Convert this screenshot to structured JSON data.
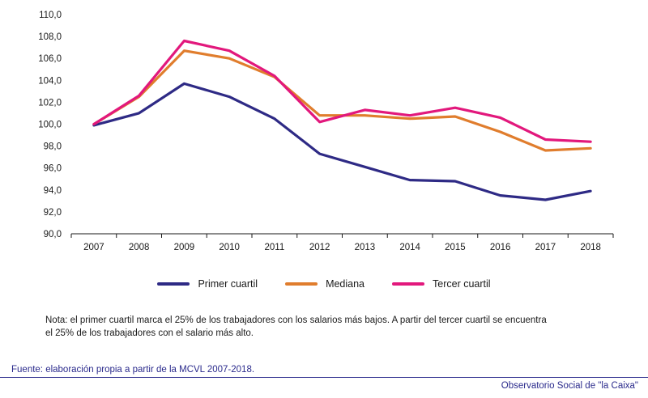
{
  "chart_data": {
    "type": "line",
    "title": "",
    "xlabel": "",
    "ylabel": "",
    "categories": [
      "2007",
      "2008",
      "2009",
      "2010",
      "2011",
      "2012",
      "2013",
      "2014",
      "2015",
      "2016",
      "2017",
      "2018"
    ],
    "ylim": [
      90,
      110
    ],
    "yticks": [
      "90,0",
      "92,0",
      "94,0",
      "96,0",
      "98,0",
      "100,0",
      "102,0",
      "104,0",
      "106,0",
      "108,0",
      "110,0"
    ],
    "grid": false,
    "legend_position": "bottom",
    "series": [
      {
        "name": "Primer cuartil",
        "color": "#2e2a85",
        "values": [
          99.9,
          101.0,
          103.7,
          102.5,
          100.5,
          97.3,
          96.1,
          94.9,
          94.8,
          93.5,
          93.1,
          93.9
        ]
      },
      {
        "name": "Mediana",
        "color": "#e07d2d",
        "values": [
          100.0,
          102.5,
          106.7,
          106.0,
          104.3,
          100.8,
          100.8,
          100.5,
          100.7,
          99.3,
          97.6,
          97.8
        ]
      },
      {
        "name": "Tercer cuartil",
        "color": "#e2187c",
        "values": [
          100.0,
          102.6,
          107.6,
          106.7,
          104.4,
          100.2,
          101.3,
          100.8,
          101.5,
          100.6,
          98.6,
          98.4
        ]
      }
    ]
  },
  "note": {
    "line1": "Nota: el primer cuartil marca el 25% de los trabajadores con los salarios más bajos. A partir del tercer cuartil se encuentra",
    "line2": "el 25% de los trabajadores con el salario más alto."
  },
  "source": "Fuente: elaboración propia a partir de la MCVL 2007-2018.",
  "brand": "Observatorio Social de \"la Caixa\""
}
